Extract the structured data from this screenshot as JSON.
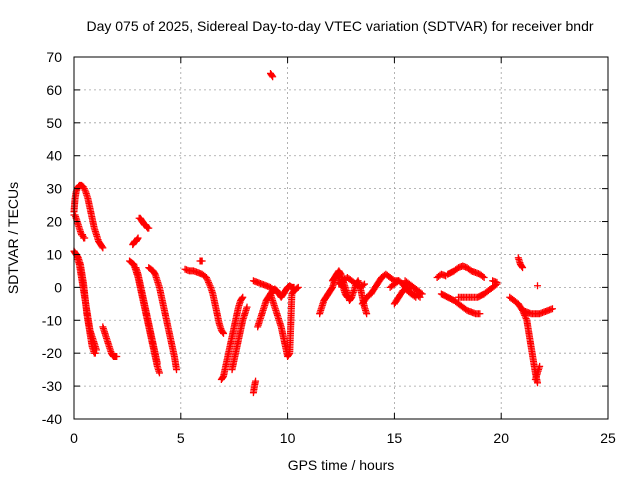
{
  "chart_data": {
    "type": "scatter",
    "title": "Day 075 of 2025, Sidereal Day-to-day VTEC variation (SDTVAR) for receiver bndr",
    "xlabel": "GPS time / hours",
    "ylabel": "SDTVAR / TECUs",
    "xlim": [
      0,
      25
    ],
    "ylim": [
      -40,
      70
    ],
    "xticks": [
      "0",
      "5",
      "10",
      "15",
      "20",
      "25"
    ],
    "yticks": [
      "-40",
      "-30",
      "-20",
      "-10",
      "0",
      "10",
      "20",
      "30",
      "40",
      "50",
      "60",
      "70"
    ],
    "grid": true,
    "legend": "none",
    "marker": "+",
    "color": "#ff0000",
    "segments": [
      {
        "x": [
          0.0,
          0.05,
          0.1,
          0.15
        ],
        "y": [
          23,
          27,
          29,
          30
        ]
      },
      {
        "x": [
          0.15,
          0.25,
          0.35,
          0.45,
          0.55,
          0.65,
          0.75,
          0.85,
          0.95,
          1.05,
          1.15,
          1.25,
          1.35
        ],
        "y": [
          30,
          31,
          31,
          30.5,
          29,
          27,
          24,
          21,
          18,
          16,
          14,
          13,
          12
        ]
      },
      {
        "x": [
          0.0,
          0.05,
          0.1,
          0.15,
          0.2,
          0.25,
          0.3,
          0.35,
          0.4,
          0.45,
          0.5
        ],
        "y": [
          22,
          22,
          21,
          20,
          19,
          18,
          17,
          16,
          16,
          15,
          15
        ]
      },
      {
        "x": [
          0.0,
          0.05,
          0.1,
          0.15,
          0.2,
          0.25,
          0.3,
          0.35,
          0.4,
          0.45,
          0.5,
          0.55,
          0.6,
          0.65,
          0.7,
          0.75,
          0.8,
          0.85,
          0.9,
          0.95,
          1.0
        ],
        "y": [
          11,
          10.5,
          10,
          9.5,
          9,
          8,
          7,
          5,
          3,
          1,
          -2,
          -5,
          -8,
          -10,
          -12,
          -14,
          -16,
          -18,
          -19,
          -20,
          -20
        ]
      },
      {
        "x": [
          0.15,
          0.2,
          0.25,
          0.3,
          0.35,
          0.4,
          0.45,
          0.5,
          0.55,
          0.6,
          0.65,
          0.7,
          0.75,
          0.8,
          0.85,
          0.9,
          0.95,
          1.0,
          1.05
        ],
        "y": [
          9,
          8,
          7,
          5,
          3,
          1,
          -1,
          -3,
          -5,
          -7,
          -9,
          -11,
          -13,
          -14,
          -15,
          -16,
          -17,
          -18,
          -19
        ]
      },
      {
        "x": [
          1.35,
          1.4,
          1.45,
          1.5,
          1.55,
          1.6,
          1.65,
          1.7,
          1.75,
          1.8,
          1.85,
          1.9,
          1.95,
          2.0
        ],
        "y": [
          -12,
          -13,
          -14,
          -15,
          -16,
          -17,
          -18,
          -19,
          -20,
          -20.5,
          -21,
          -21,
          -21,
          -21
        ]
      },
      {
        "x": [
          2.75,
          2.8,
          2.85,
          2.9,
          2.95,
          3.0
        ],
        "y": [
          13,
          13.5,
          14,
          14,
          14.5,
          15
        ]
      },
      {
        "x": [
          3.05,
          3.1,
          3.15,
          3.2,
          3.25,
          3.3,
          3.35,
          3.4,
          3.45,
          3.5
        ],
        "y": [
          21,
          21,
          20.5,
          20,
          19.5,
          19,
          19,
          18.5,
          18,
          18
        ]
      },
      {
        "x": [
          2.6,
          2.7,
          2.8,
          2.9,
          3.0,
          3.1,
          3.2,
          3.3,
          3.4,
          3.5,
          3.6,
          3.7,
          3.8,
          3.9,
          4.0
        ],
        "y": [
          8,
          7.5,
          7,
          5,
          3,
          0,
          -3,
          -6,
          -9,
          -12,
          -15,
          -18,
          -21,
          -24,
          -26
        ]
      },
      {
        "x": [
          2.9,
          3.0,
          3.1,
          3.2,
          3.3,
          3.4,
          3.5,
          3.6,
          3.7,
          3.8,
          3.9
        ],
        "y": [
          6,
          4,
          1,
          -2,
          -5,
          -8,
          -11,
          -14,
          -17,
          -20,
          -23
        ]
      },
      {
        "x": [
          3.5,
          3.6,
          3.7,
          3.8,
          3.9,
          4.0,
          4.1,
          4.2,
          4.3,
          4.4,
          4.5,
          4.6,
          4.7,
          4.8
        ],
        "y": [
          6,
          5.5,
          5,
          4,
          2,
          0,
          -3,
          -6,
          -9,
          -12,
          -15,
          -18,
          -21,
          -25
        ]
      },
      {
        "x": [
          5.2,
          5.4,
          5.6,
          5.8,
          6.0,
          6.2,
          6.4,
          6.5,
          6.6,
          6.7,
          6.8,
          6.9,
          7.0
        ],
        "y": [
          5.5,
          5,
          5,
          4.5,
          4,
          3,
          0,
          -2,
          -5,
          -8,
          -11,
          -13,
          -14
        ]
      },
      {
        "x": [
          5.9,
          6.0
        ],
        "y": [
          8,
          8
        ]
      },
      {
        "x": [
          6.9,
          7.0,
          7.1,
          7.2,
          7.3,
          7.4,
          7.5,
          7.6,
          7.7,
          7.8,
          7.9
        ],
        "y": [
          -28,
          -27,
          -24,
          -21,
          -18,
          -15,
          -12,
          -9,
          -6,
          -4,
          -3
        ]
      },
      {
        "x": [
          7.4,
          7.5,
          7.6,
          7.7,
          7.8,
          7.9,
          8.0,
          8.1
        ],
        "y": [
          -25,
          -22,
          -19,
          -16,
          -13,
          -10,
          -8,
          -6
        ]
      },
      {
        "x": [
          8.4,
          8.45,
          8.5
        ],
        "y": [
          -32,
          -30,
          -28.5
        ]
      },
      {
        "x": [
          8.4,
          8.6,
          8.8,
          9.0,
          9.2,
          9.4
        ],
        "y": [
          2,
          1.5,
          1,
          0.5,
          0,
          -1
        ]
      },
      {
        "x": [
          8.6,
          8.7,
          8.8,
          8.9,
          9.0,
          9.1,
          9.2,
          9.3,
          9.4,
          9.5,
          9.6,
          9.7,
          9.8,
          9.9,
          10.0,
          10.1,
          10.2,
          10.3
        ],
        "y": [
          -12,
          -10,
          -8,
          -6,
          -4,
          -3,
          -2,
          -1,
          -0.5,
          -1,
          -2,
          -3,
          -2,
          -1,
          0,
          0.5,
          0,
          0
        ]
      },
      {
        "x": [
          9.2,
          9.3,
          9.4,
          9.5,
          9.6,
          9.7,
          9.8,
          9.9,
          10.0,
          10.1,
          10.2,
          10.3,
          10.4,
          10.5
        ],
        "y": [
          -2,
          -4,
          -6,
          -8,
          -10,
          -12,
          -15,
          -18,
          -21,
          -20,
          -2,
          -1,
          -0.5,
          0
        ]
      },
      {
        "x": [
          9.2,
          9.3
        ],
        "y": [
          65,
          64
        ]
      },
      {
        "x": [
          11.5,
          11.6,
          11.7,
          11.8,
          11.9,
          12.0,
          12.1,
          12.2,
          12.3,
          12.4,
          12.5,
          12.6,
          12.7,
          12.8
        ],
        "y": [
          -8,
          -6,
          -4,
          -3,
          -2,
          -1,
          0,
          2,
          4,
          3,
          1,
          0,
          -2,
          -3
        ]
      },
      {
        "x": [
          12.1,
          12.2,
          12.3,
          12.4,
          12.5,
          12.6,
          12.7,
          12.8,
          12.9,
          13.0,
          13.1,
          13.2,
          13.3,
          13.4,
          13.5,
          13.6,
          13.7
        ],
        "y": [
          2,
          3,
          4,
          5,
          4,
          2,
          0,
          -2,
          -4,
          -3,
          -1,
          1,
          2,
          0,
          -3,
          -6,
          -8
        ]
      },
      {
        "x": [
          12.4,
          12.6,
          12.8,
          13.0,
          13.2,
          13.4,
          13.6
        ],
        "y": [
          1,
          2,
          3,
          2,
          1,
          0,
          1
        ]
      },
      {
        "x": [
          13.5,
          13.7,
          13.9,
          14.0,
          14.2,
          14.4,
          14.6,
          14.8,
          15.0,
          15.2
        ],
        "y": [
          -5,
          -3,
          -2,
          -1,
          1,
          3,
          4,
          3,
          2,
          2
        ]
      },
      {
        "x": [
          14.8,
          15.0,
          15.2,
          15.4,
          15.6,
          15.8,
          16.0,
          16.2
        ],
        "y": [
          0,
          1,
          2,
          1,
          -1,
          -2,
          -2,
          -3
        ]
      },
      {
        "x": [
          15.0,
          15.2,
          15.4,
          15.6,
          15.8,
          16.0
        ],
        "y": [
          -5,
          -3,
          -1,
          0,
          -2,
          -3
        ]
      },
      {
        "x": [
          15.5,
          15.7,
          15.9,
          16.1,
          16.3
        ],
        "y": [
          2,
          1,
          0,
          -1,
          -2
        ]
      },
      {
        "x": [
          17.0,
          17.2,
          17.4
        ],
        "y": [
          3,
          4,
          3.5
        ]
      },
      {
        "x": [
          17.2,
          17.5,
          17.8,
          18.0,
          18.2,
          18.4,
          18.6,
          18.8,
          19.0
        ],
        "y": [
          -2,
          -3,
          -4,
          -5,
          -6,
          -7,
          -7.5,
          -8,
          -8
        ]
      },
      {
        "x": [
          17.5,
          17.8,
          18.0,
          18.2,
          18.4,
          18.6,
          18.8,
          19.0,
          19.2
        ],
        "y": [
          4,
          5,
          6,
          6.5,
          6,
          5,
          4.5,
          4,
          3
        ]
      },
      {
        "x": [
          18.0,
          18.3,
          18.6,
          18.9,
          19.2,
          19.4,
          19.6,
          19.8
        ],
        "y": [
          -3,
          -3,
          -3,
          -3,
          -2,
          -1,
          0,
          1
        ]
      },
      {
        "x": [
          19.6,
          19.8
        ],
        "y": [
          2,
          1.5
        ]
      },
      {
        "x": [
          20.4,
          20.6,
          20.8,
          21.0,
          21.2,
          21.3,
          21.4,
          21.5,
          21.6,
          21.7
        ],
        "y": [
          -3,
          -4,
          -5,
          -7,
          -10,
          -14,
          -18,
          -22,
          -26,
          -29
        ]
      },
      {
        "x": [
          20.8,
          20.9,
          21.0
        ],
        "y": [
          9,
          7,
          6
        ]
      },
      {
        "x": [
          21.0,
          21.2,
          21.4,
          21.6,
          21.8,
          22.0,
          22.2,
          22.4
        ],
        "y": [
          -7,
          -7.5,
          -8,
          -8,
          -8,
          -7.5,
          -7,
          -6.5
        ]
      },
      {
        "x": [
          21.6,
          21.8
        ],
        "y": [
          -28,
          -24
        ]
      },
      {
        "x": [
          21.7
        ],
        "y": [
          0.5
        ]
      }
    ]
  }
}
